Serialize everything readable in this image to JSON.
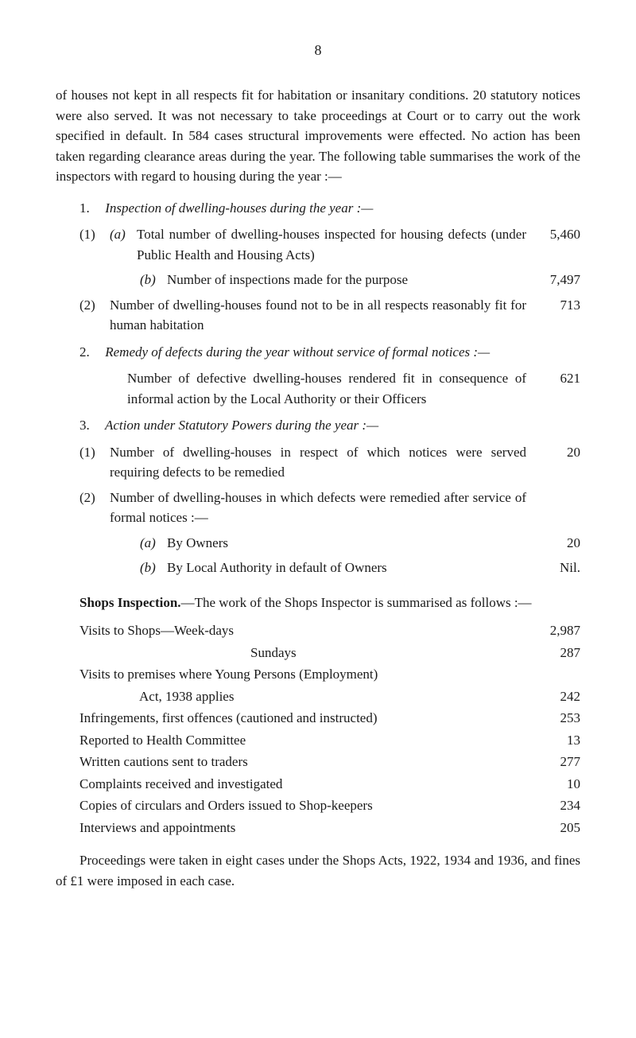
{
  "pageNumber": "8",
  "intro": "of houses not kept in all respects fit for habitation or insanitary conditions. 20 statutory notices were also served. It was not necessary to take proceedings at Court or to carry out the work specified in default. In 584 cases structural improvements were effected. No action has been taken regarding clearance areas during the year. The following table summarises the work of the inspectors with regard to housing during the year :—",
  "sec1": {
    "num": "1.",
    "title": "Inspection of dwelling-houses during the year :—",
    "r1a_num": "(1)",
    "r1a_letter": "(a)",
    "r1a_text": "Total number of dwelling-houses inspected for housing defects (under Public Health and Housing Acts)",
    "r1a_val": "5,460",
    "r1b_letter": "(b)",
    "r1b_text": "Number of inspections made for the purpose",
    "r1b_val": "7,497",
    "r2_num": "(2)",
    "r2_text": "Number of dwelling-houses found not to be in all respects reasonably fit for human habitation",
    "r2_val": "713"
  },
  "sec2": {
    "num": "2.",
    "title": "Remedy of defects during the year without service of formal notices :—",
    "desc": "Number of defective dwelling-houses rendered fit in consequence of informal action by the Local Authority or their Officers",
    "val": "621"
  },
  "sec3": {
    "num": "3.",
    "title": "Action under Statutory Powers during the year :—",
    "r1_num": "(1)",
    "r1_text": "Number of dwelling-houses in respect of which notices were served requiring defects to be remedied",
    "r1_val": "20",
    "r2_num": "(2)",
    "r2_text": "Number of dwelling-houses in which defects were remedied after service of formal notices :—",
    "ra_letter": "(a)",
    "ra_text": "By Owners",
    "ra_val": "20",
    "rb_letter": "(b)",
    "rb_text": "By Local Authority in default of Owners",
    "rb_val": "Nil."
  },
  "shops": {
    "heading_bold": "Shops Inspection.",
    "heading_rest": "—The work of the Shops Inspector is summarised as follows :—",
    "rows": [
      {
        "label": "Visits to Shops—Week-days",
        "val": "2,987"
      },
      {
        "label": "Sundays",
        "val": "287",
        "sub": true
      },
      {
        "label": "Visits to premises where Young Persons (Employment)",
        "val": ""
      },
      {
        "label": "Act, 1938 applies",
        "val": "242",
        "cont": true
      },
      {
        "label": "Infringements, first offences (cautioned and instructed)",
        "val": "253"
      },
      {
        "label": "Reported to Health Committee",
        "val": "13"
      },
      {
        "label": "Written cautions sent to traders",
        "val": "277"
      },
      {
        "label": "Complaints received and investigated",
        "val": "10"
      },
      {
        "label": "Copies of circulars and Orders issued to Shop-keepers",
        "val": "234"
      },
      {
        "label": "Interviews and appointments",
        "val": "205"
      }
    ]
  },
  "final": "Proceedings were taken in eight cases under the Shops Acts, 1922, 1934 and 1936, and fines of £1 were imposed in each case."
}
